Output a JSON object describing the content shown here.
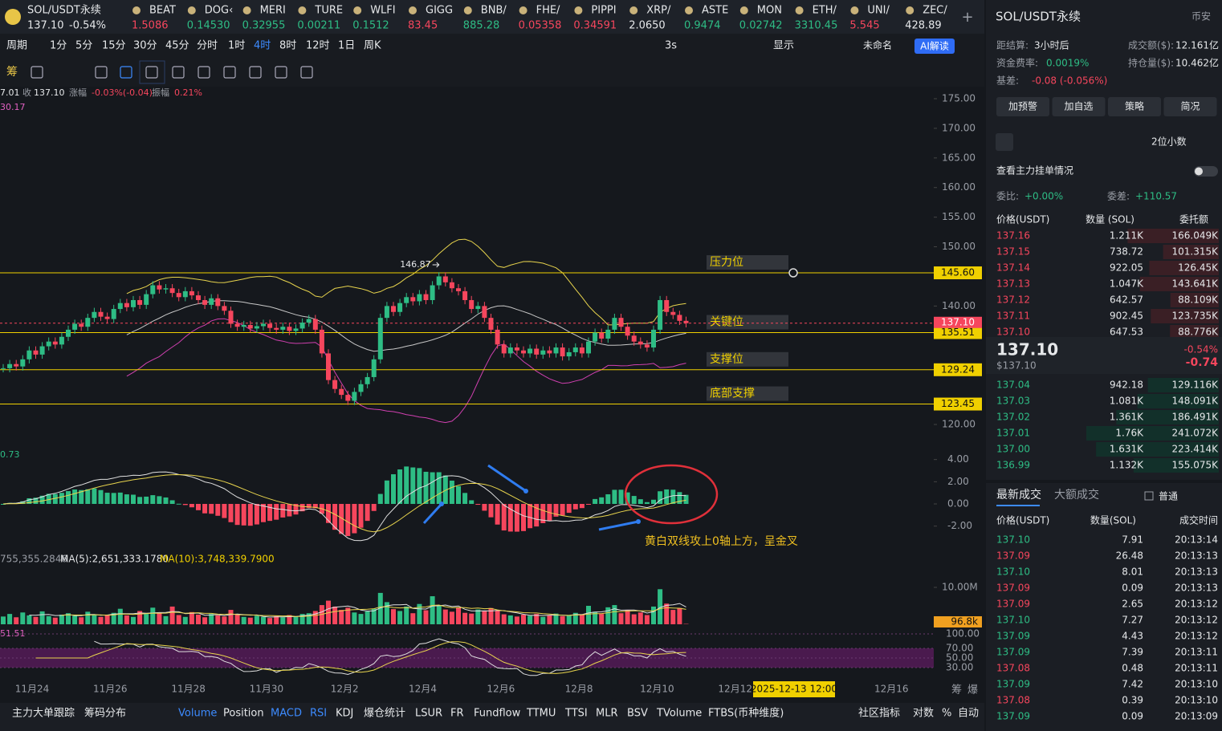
{
  "top": {
    "symbol": "SOL/USDT永续",
    "price": "137.10",
    "change": "-0.54%",
    "tickers": [
      {
        "name": "BEAT",
        "price": "1.5086",
        "dir": "down"
      },
      {
        "name": "DOG‹",
        "price": "0.14530",
        "dir": "up"
      },
      {
        "name": "MERI",
        "price": "0.32955",
        "dir": "up"
      },
      {
        "name": "TURE",
        "price": "0.00211",
        "dir": "up"
      },
      {
        "name": "WLFI",
        "price": "0.1512",
        "dir": "up"
      },
      {
        "name": "GIGG",
        "price": "83.45",
        "dir": "down"
      },
      {
        "name": "BNB/",
        "price": "885.28",
        "dir": "up"
      },
      {
        "name": "FHE/",
        "price": "0.05358",
        "dir": "down"
      },
      {
        "name": "PIPPI",
        "price": "0.34591",
        "dir": "down"
      },
      {
        "name": "XRP/",
        "price": "2.0650",
        "dir": "flat"
      },
      {
        "name": "ASTE",
        "price": "0.9474",
        "dir": "up"
      },
      {
        "name": "MON",
        "price": "0.02742",
        "dir": "up"
      },
      {
        "name": "ETH/",
        "price": "3310.45",
        "dir": "up"
      },
      {
        "name": "UNI/",
        "price": "5.545",
        "dir": "down"
      },
      {
        "name": "ZEC/",
        "price": "428.89",
        "dir": "flat"
      }
    ]
  },
  "toolbar": {
    "periods": [
      "周期",
      "1分",
      "5分",
      "15分",
      "30分",
      "45分",
      "分时",
      "1时",
      "4时",
      "8时",
      "12时",
      "1日",
      "周K"
    ],
    "active_index": 8,
    "refresh": "3s",
    "display": "显示",
    "layout": "未命名",
    "ai": "AI解读",
    "draw_first": "筹"
  },
  "chart": {
    "info": {
      "open_tail": "7.01",
      "close_label": "收",
      "close": "137.10",
      "chg_label": "涨幅",
      "chg": "-0.03%(-0.04)",
      "amp_label": "振幅",
      "amp": "0.21%",
      "ma_tail": "30.17"
    },
    "price_ticks": [
      {
        "value": 175,
        "label": "175.00"
      },
      {
        "value": 170,
        "label": "170.00"
      },
      {
        "value": 165,
        "label": "165.00"
      },
      {
        "value": 160,
        "label": "160.00"
      },
      {
        "value": 155,
        "label": "155.00"
      },
      {
        "value": 150,
        "label": "150.00"
      },
      {
        "value": 140,
        "label": "140.00"
      },
      {
        "value": 120,
        "label": "120.00"
      }
    ],
    "levels": [
      {
        "value": 145.6,
        "label": "145.60",
        "name": "压力位"
      },
      {
        "value": 135.51,
        "label": "135.51",
        "name": "关键位"
      },
      {
        "value": 129.24,
        "label": "129.24",
        "name": "支撑位"
      },
      {
        "value": 123.45,
        "label": "123.45",
        "name": "底部支撑"
      }
    ],
    "last": {
      "value": 137.1,
      "label": "137.10"
    },
    "high_note": "146.87",
    "closes": [
      129.5,
      130.2,
      129.8,
      131.0,
      132.5,
      131.8,
      133.2,
      134.0,
      133.5,
      134.8,
      136.0,
      137.0,
      136.5,
      138.0,
      139.0,
      138.2,
      137.8,
      139.5,
      140.5,
      139.8,
      141.0,
      140.2,
      142.0,
      143.5,
      142.8,
      143.0,
      142.2,
      141.5,
      142.5,
      141.8,
      141.0,
      140.2,
      141.3,
      140.0,
      139.2,
      137.0,
      136.5,
      136.8,
      136.2,
      136.6,
      137.0,
      136.3,
      136.0,
      136.5,
      135.8,
      136.2,
      137.2,
      137.8,
      136.0,
      132.0,
      127.5,
      126.0,
      125.0,
      124.0,
      125.5,
      126.8,
      128.0,
      131.0,
      138.0,
      140.0,
      139.0,
      140.5,
      141.5,
      140.8,
      142.0,
      141.0,
      143.5,
      145.0,
      144.0,
      143.0,
      142.5,
      141.0,
      139.5,
      140.0,
      138.0,
      136.0,
      133.5,
      132.0,
      133.0,
      132.5,
      132.0,
      132.8,
      131.8,
      132.5,
      132.0,
      133.0,
      131.5,
      132.2,
      133.0,
      132.0,
      134.0,
      135.5,
      134.5,
      136.0,
      138.0,
      136.5,
      135.0,
      134.0,
      133.5,
      133.0,
      136.0,
      141.0,
      139.0,
      138.5,
      137.5,
      137.1
    ],
    "macd_left": "0.73",
    "macd_ticks": [
      {
        "value": 4,
        "label": "4.00"
      },
      {
        "value": 2,
        "label": "2.00"
      },
      {
        "value": 0,
        "label": "0.00"
      },
      {
        "value": -2,
        "label": "-2.00"
      }
    ],
    "macd_note": "黄白双线攻上0轴上方，呈金叉",
    "vol_legend": {
      "vol": "755,355.2846",
      "ma5": "MA(5):2,651,333.1780",
      "ma10": "MA(10):3,748,339.7900"
    },
    "vol_tick": {
      "value": 10,
      "label": "10.00M"
    },
    "vol_last": "96.8k",
    "volume": [
      2.1,
      2.8,
      1.9,
      3.2,
      2.4,
      2.0,
      3.5,
      2.2,
      1.8,
      2.6,
      3.0,
      2.3,
      1.9,
      3.4,
      2.7,
      2.0,
      2.5,
      3.1,
      4.2,
      2.4,
      2.0,
      3.6,
      2.8,
      4.5,
      3.0,
      2.2,
      4.8,
      2.5,
      2.0,
      3.3,
      2.6,
      1.9,
      2.8,
      2.4,
      2.1,
      3.9,
      2.6,
      2.0,
      1.8,
      2.3,
      2.0,
      1.7,
      2.2,
      1.9,
      2.5,
      2.1,
      2.8,
      3.0,
      3.6,
      5.2,
      6.4,
      4.8,
      3.9,
      4.5,
      3.2,
      2.8,
      3.5,
      4.2,
      8.5,
      6.0,
      4.1,
      3.6,
      4.8,
      3.0,
      5.5,
      3.8,
      7.6,
      5.2,
      4.0,
      3.4,
      4.6,
      3.1,
      2.9,
      4.0,
      3.6,
      4.4,
      3.8,
      2.7,
      2.4,
      2.1,
      2.6,
      2.3,
      2.8,
      2.0,
      2.5,
      2.9,
      2.2,
      2.4,
      3.1,
      2.6,
      5.0,
      3.4,
      2.8,
      4.6,
      5.2,
      3.0,
      3.8,
      2.7,
      3.2,
      2.5,
      4.8,
      9.5,
      5.6,
      3.9,
      4.4,
      0.1
    ],
    "rsi_left": "51.51",
    "rsi_ticks": [
      {
        "value": 100,
        "label": "100.00"
      },
      {
        "value": 70,
        "label": "70.00"
      },
      {
        "value": 50,
        "label": "50.00"
      },
      {
        "value": 30,
        "label": "30.00"
      }
    ],
    "dates": [
      "11月24",
      "11月26",
      "11月28",
      "11月30",
      "12月2",
      "12月4",
      "12月6",
      "12月8",
      "12月10",
      "12月12",
      null,
      "12月16"
    ],
    "crosshair": "2025-12-13 12:00",
    "corner": [
      "筹",
      "爆"
    ]
  },
  "bottom": {
    "left": [
      "主力大单跟踪",
      "筹码分布"
    ],
    "indicators": [
      "Volume",
      "Position",
      "MACD",
      "RSI",
      "KDJ",
      "爆仓统计",
      "LSUR",
      "FR",
      "Fundflow",
      "TTMU",
      "TTSI",
      "MLR",
      "BSV",
      "TVolume",
      "FTBS(币种维度)"
    ],
    "active": [
      0,
      2,
      3
    ],
    "right": [
      "社区指标",
      "对数",
      "%",
      "自动"
    ]
  },
  "panel": {
    "title": "SOL/USDT永续",
    "exchange": "币安",
    "stats": [
      {
        "label": "距结算:",
        "value": "3小时后"
      },
      {
        "label": "成交额($):",
        "value": "12.161亿"
      },
      {
        "label": "资金费率:",
        "value": "0.0019%"
      },
      {
        "label": "持仓量($):",
        "value": "10.462亿"
      },
      {
        "label": "基差:",
        "value": "-0.08 (-0.056%)"
      }
    ],
    "buttons": [
      "加预警",
      "加自选",
      "策略",
      "简况"
    ],
    "decimals": "2位小数",
    "depth_link": "查看主力挂单情况",
    "ratio": {
      "label": "委比:",
      "value": "+0.00%"
    },
    "diff": {
      "label": "委差:",
      "value": "+110.57"
    },
    "book_headers": [
      "价格(USDT)",
      "数量 (SOL)",
      "委托额"
    ],
    "asks": [
      [
        "137.16",
        "1.211K",
        "166.049K"
      ],
      [
        "137.15",
        "738.72",
        "101.315K"
      ],
      [
        "137.14",
        "922.05",
        "126.45K"
      ],
      [
        "137.13",
        "1.047K",
        "143.641K"
      ],
      [
        "137.12",
        "642.57",
        "88.109K"
      ],
      [
        "137.11",
        "902.45",
        "123.735K"
      ],
      [
        "137.10",
        "647.53",
        "88.776K"
      ]
    ],
    "mid": {
      "price": "137.10",
      "usd": "$137.10",
      "pct": "-0.54%",
      "chg": "-0.74"
    },
    "bids": [
      [
        "137.04",
        "942.18",
        "129.116K"
      ],
      [
        "137.03",
        "1.081K",
        "148.091K"
      ],
      [
        "137.02",
        "1.361K",
        "186.491K"
      ],
      [
        "137.01",
        "1.76K",
        "241.072K"
      ],
      [
        "137.00",
        "1.631K",
        "223.414K"
      ],
      [
        "136.99",
        "1.132K",
        "155.075K"
      ]
    ],
    "tabs": [
      "最新成交",
      "大额成交"
    ],
    "normal": "普通",
    "trade_headers": [
      "价格(USDT)",
      "数量(SOL)",
      "成交时间"
    ],
    "trades": [
      [
        "137.10",
        "7.91",
        "20:13:14",
        "up"
      ],
      [
        "137.09",
        "26.48",
        "20:13:13",
        "down"
      ],
      [
        "137.10",
        "8.01",
        "20:13:13",
        "up"
      ],
      [
        "137.09",
        "0.09",
        "20:13:13",
        "down"
      ],
      [
        "137.09",
        "2.65",
        "20:13:12",
        "down"
      ],
      [
        "137.10",
        "7.27",
        "20:13:12",
        "up"
      ],
      [
        "137.09",
        "4.43",
        "20:13:12",
        "up"
      ],
      [
        "137.09",
        "7.39",
        "20:13:11",
        "up"
      ],
      [
        "137.08",
        "0.48",
        "20:13:11",
        "down"
      ],
      [
        "137.09",
        "7.42",
        "20:13:10",
        "up"
      ],
      [
        "137.08",
        "0.39",
        "20:13:10",
        "down"
      ],
      [
        "137.09",
        "0.09",
        "20:13:09",
        "up"
      ]
    ]
  }
}
